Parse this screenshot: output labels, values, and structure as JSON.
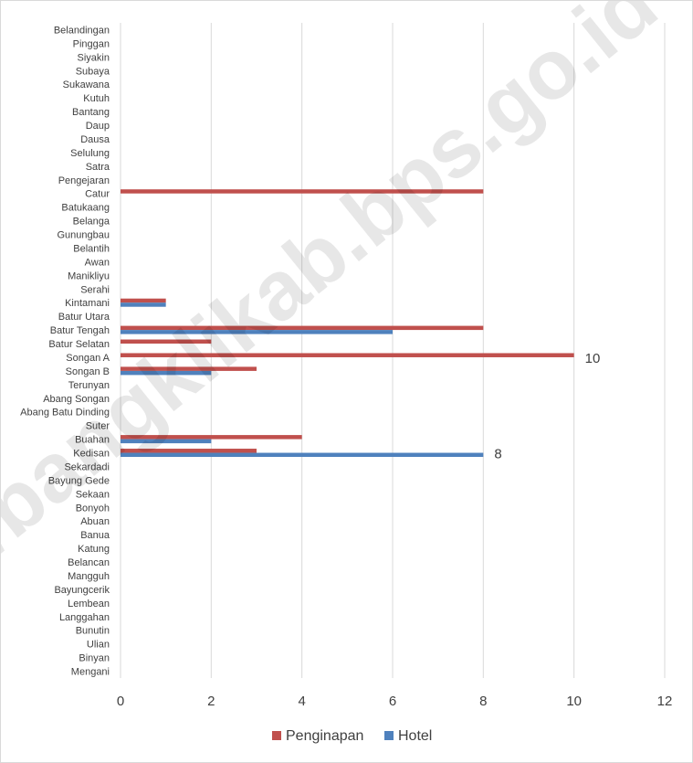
{
  "watermark": "https://bangklikab.bps.go.id",
  "chart_data": {
    "type": "bar",
    "orientation": "horizontal",
    "categories": [
      "Belandingan",
      "Pinggan",
      "Siyakin",
      "Subaya",
      "Sukawana",
      "Kutuh",
      "Bantang",
      "Daup",
      "Dausa",
      "Selulung",
      "Satra",
      "Pengejaran",
      "Catur",
      "Batukaang",
      "Belanga",
      "Gunungbau",
      "Belantih",
      "Awan",
      "Manikliyu",
      "Serahi",
      "Kintamani",
      "Batur Utara",
      "Batur Tengah",
      "Batur Selatan",
      "Songan A",
      "Songan B",
      "Terunyan",
      "Abang Songan",
      "Abang Batu Dinding",
      "Suter",
      "Buahan",
      "Kedisan",
      "Sekardadi",
      "Bayung Gede",
      "Sekaan",
      "Bonyoh",
      "Abuan",
      "Banua",
      "Katung",
      "Belancan",
      "Mangguh",
      "Bayungcerik",
      "Lembean",
      "Langgahan",
      "Bunutin",
      "Ulian",
      "Binyan",
      "Mengani"
    ],
    "series": [
      {
        "name": "Penginapan",
        "color": "#c0504d",
        "values": [
          0,
          0,
          0,
          0,
          0,
          0,
          0,
          0,
          0,
          0,
          0,
          0,
          8,
          0,
          0,
          0,
          0,
          0,
          0,
          0,
          1,
          0,
          8,
          2,
          10,
          3,
          0,
          0,
          0,
          0,
          4,
          3,
          0,
          0,
          0,
          0,
          0,
          0,
          0,
          0,
          0,
          0,
          0,
          0,
          0,
          0,
          0,
          0
        ]
      },
      {
        "name": "Hotel",
        "color": "#4f81bd",
        "values": [
          0,
          0,
          0,
          0,
          0,
          0,
          0,
          0,
          0,
          0,
          0,
          0,
          0,
          0,
          0,
          0,
          0,
          0,
          0,
          0,
          1,
          0,
          6,
          0,
          0,
          2,
          0,
          0,
          0,
          0,
          2,
          8,
          0,
          0,
          0,
          0,
          0,
          0,
          0,
          0,
          0,
          0,
          0,
          0,
          0,
          0,
          0,
          0
        ]
      }
    ],
    "xlim": [
      0,
      12
    ],
    "xticks": [
      "0",
      "2",
      "4",
      "6",
      "8",
      "10",
      "12"
    ],
    "data_labels": [
      {
        "series": "Penginapan",
        "category": "Songan A",
        "text": "10"
      },
      {
        "series": "Hotel",
        "category": "Kedisan",
        "text": "8"
      }
    ],
    "grid": true,
    "legend": "bottom"
  }
}
